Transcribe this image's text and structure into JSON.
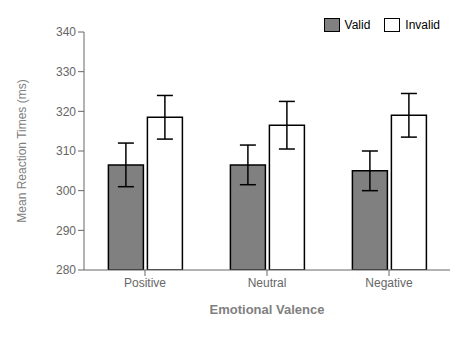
{
  "chart_data": {
    "type": "bar",
    "categories": [
      "Positive",
      "Neutral",
      "Negative"
    ],
    "series": [
      {
        "name": "Valid",
        "color": "#808080",
        "values": [
          306.5,
          306.5,
          305.0
        ],
        "errors": [
          5.5,
          5.0,
          5.0
        ]
      },
      {
        "name": "Invalid",
        "color": "#ffffff",
        "values": [
          318.5,
          316.5,
          319.0
        ],
        "errors": [
          5.5,
          6.0,
          5.5
        ]
      }
    ],
    "xlabel": "Emotional Valence",
    "ylabel": "Mean Reaction Times (ms)",
    "ylim": [
      280,
      340
    ],
    "yticks": [
      280,
      290,
      300,
      310,
      320,
      330,
      340
    ],
    "grid": false,
    "legend": "upper right"
  }
}
